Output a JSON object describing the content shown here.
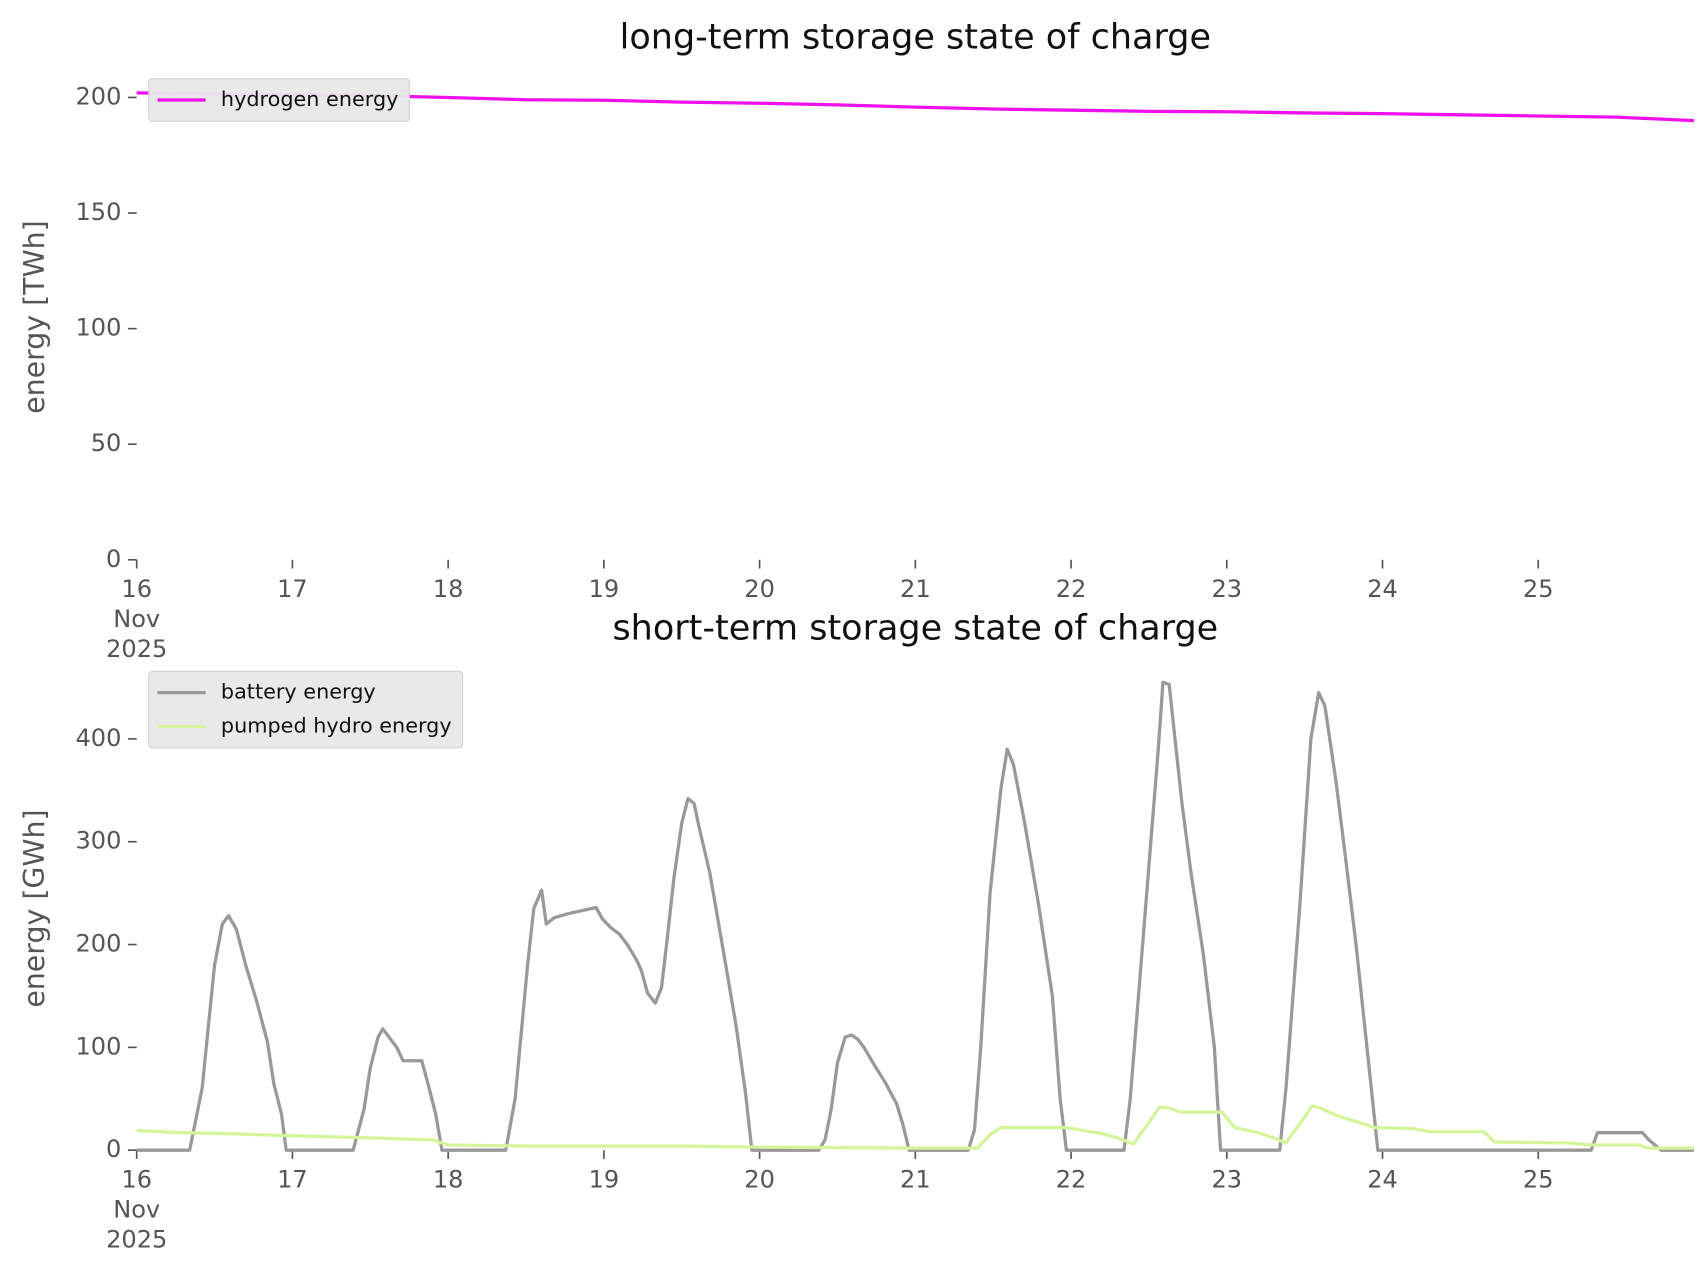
{
  "chart_data": [
    {
      "type": "line",
      "title": "long-term storage state of charge",
      "ylabel": "energy [TWh]",
      "xlim": [
        16,
        26
      ],
      "xticks": [
        {
          "value": 16,
          "label": "16\nNov\n2025"
        },
        17,
        18,
        19,
        20,
        21,
        22,
        23,
        24,
        25
      ],
      "ylim": [
        0,
        210
      ],
      "yticks": [
        0,
        50,
        100,
        150,
        200
      ],
      "legend": "upper left",
      "series": [
        {
          "name": "hydrogen energy",
          "color": "#ee11ee",
          "x": [
            16,
            16.5,
            17,
            17.5,
            18,
            18.5,
            19,
            19.5,
            20,
            20.5,
            21,
            21.5,
            22,
            22.5,
            23,
            23.5,
            24,
            24.5,
            25,
            25.5,
            26
          ],
          "values": [
            202,
            201.5,
            201,
            200.8,
            200,
            199,
            198.8,
            198,
            197.5,
            196.8,
            195.8,
            195,
            194.5,
            194,
            193.8,
            193.3,
            193,
            192.5,
            192,
            191.5,
            190
          ]
        }
      ]
    },
    {
      "type": "line",
      "title": "short-term storage state of charge",
      "ylabel": "energy [GWh]",
      "xlim": [
        16,
        26
      ],
      "xticks": [
        {
          "value": 16,
          "label": "16\nNov\n2025"
        },
        17,
        18,
        19,
        20,
        21,
        22,
        23,
        24,
        25
      ],
      "ylim": [
        0,
        470
      ],
      "yticks": [
        0,
        100,
        200,
        300,
        400
      ],
      "legend": "upper left",
      "series": [
        {
          "name": "battery energy",
          "color": "#999999",
          "x": [
            16,
            16.34,
            16.42,
            16.5,
            16.55,
            16.59,
            16.64,
            16.7,
            16.77,
            16.84,
            16.88,
            16.93,
            16.96,
            17.39,
            17.46,
            17.5,
            17.55,
            17.58,
            17.62,
            17.67,
            17.71,
            17.83,
            17.87,
            17.92,
            17.96,
            18.37,
            18.43,
            18.51,
            18.55,
            18.6,
            18.63,
            18.68,
            18.77,
            18.95,
            18.99,
            19.04,
            19.1,
            19.15,
            19.21,
            19.24,
            19.28,
            19.33,
            19.37,
            19.41,
            19.45,
            19.5,
            19.54,
            19.58,
            19.61,
            19.68,
            19.76,
            19.85,
            19.91,
            19.95,
            20.38,
            20.42,
            20.46,
            20.5,
            20.55,
            20.59,
            20.63,
            20.67,
            20.72,
            20.81,
            20.88,
            20.92,
            20.96,
            21.34,
            21.38,
            21.42,
            21.48,
            21.55,
            21.59,
            21.63,
            21.7,
            21.79,
            21.88,
            21.93,
            21.97,
            22.34,
            22.38,
            22.47,
            22.56,
            22.59,
            22.63,
            22.71,
            22.77,
            22.85,
            22.92,
            22.96,
            23.34,
            23.38,
            23.47,
            23.54,
            23.59,
            23.63,
            23.7,
            23.75,
            23.83,
            23.9,
            23.97,
            25.34,
            25.38,
            25.67,
            25.71,
            25.79,
            26
          ],
          "values": [
            0,
            0,
            60,
            180,
            220,
            228,
            215,
            180,
            145,
            105,
            65,
            35,
            0,
            0,
            40,
            80,
            110,
            118,
            110,
            100,
            87,
            87,
            65,
            35,
            0,
            0,
            50,
            180,
            235,
            253,
            220,
            226,
            230,
            236,
            225,
            217,
            210,
            200,
            185,
            175,
            153,
            143,
            158,
            210,
            265,
            318,
            342,
            337,
            315,
            270,
            200,
            120,
            55,
            0,
            0,
            10,
            40,
            85,
            110,
            112,
            108,
            100,
            87,
            65,
            45,
            25,
            0,
            0,
            20,
            100,
            250,
            352,
            390,
            375,
            320,
            240,
            150,
            50,
            0,
            0,
            50,
            220,
            390,
            455,
            453,
            340,
            270,
            190,
            100,
            0,
            0,
            60,
            240,
            400,
            445,
            432,
            360,
            300,
            200,
            100,
            0,
            0,
            17,
            17,
            10,
            0,
            0
          ]
        },
        {
          "name": "pumped hydro energy",
          "color": "#d4f59a",
          "x": [
            16,
            16.3,
            16.6,
            17,
            17.5,
            17.7,
            17.9,
            18,
            18.5,
            19.5,
            20,
            21,
            21.4,
            21.48,
            21.55,
            21.8,
            21.97,
            22.2,
            22.3,
            22.4,
            22.57,
            22.63,
            22.7,
            22.97,
            23.05,
            23.2,
            23.3,
            23.38,
            23.55,
            23.6,
            23.7,
            23.95,
            24.2,
            24.3,
            24.65,
            24.72,
            25.2,
            25.35,
            25.65,
            25.7,
            26
          ],
          "values": [
            19,
            17,
            16,
            14,
            12,
            11,
            10,
            5,
            4,
            4,
            3,
            2,
            2,
            15,
            22,
            22,
            22,
            16,
            12,
            6,
            42,
            41,
            37,
            37,
            22,
            17,
            12,
            7,
            43,
            41,
            34,
            22,
            21,
            18,
            18,
            8,
            7,
            5,
            5,
            2,
            2
          ]
        }
      ]
    }
  ]
}
